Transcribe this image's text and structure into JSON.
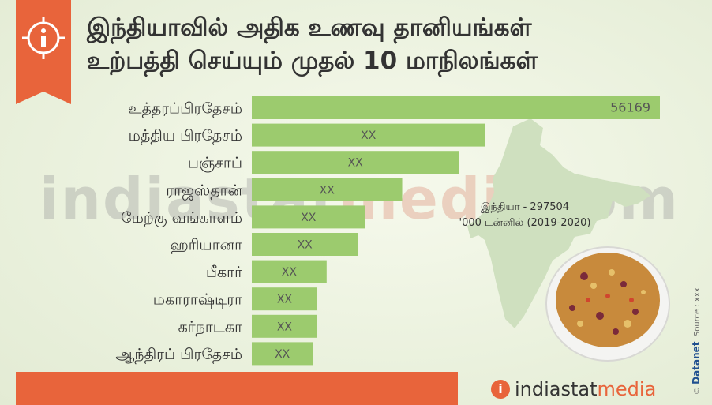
{
  "title": {
    "line1": "இந்தியாவில் அதிக உணவு தானியங்கள்",
    "line2": "உற்பத்தி செய்யும் முதல் 10 மாநிலங்கள்"
  },
  "india_note": {
    "line1": "இந்தியா - 297504",
    "line2": "'000 டன்னில் (2019-2020)"
  },
  "watermark": {
    "part1": "indiastat",
    "part2": "media",
    "part3": "com"
  },
  "logo": {
    "part1": "indiastat",
    "part2": "media",
    "icon": "info-icon"
  },
  "source": {
    "copyright": "©",
    "brand": "Datanet",
    "text": "Source : xxx"
  },
  "colors": {
    "accent": "#e8643b",
    "bar": "#9ccb6e",
    "text": "#333333"
  },
  "chart_data": {
    "type": "bar",
    "orientation": "horizontal",
    "categories": [
      "உத்தரப்பிரதேசம்",
      "மத்திய பிரதேசம்",
      "பஞ்சாப்",
      "ராஜஸ்தான்",
      "மேற்கு வங்காளம்",
      "ஹரியானா",
      "பீகார்",
      "மகாராஷ்டிரா",
      "கர்நாடகா",
      "ஆந்திரப் பிரதேசம்"
    ],
    "value_labels": [
      "56169",
      "XX",
      "XX",
      "XX",
      "XX",
      "XX",
      "XX",
      "XX",
      "XX",
      "XX"
    ],
    "values": [
      56169,
      32100,
      28500,
      20700,
      15600,
      14600,
      10300,
      9000,
      9000,
      8400
    ],
    "xlim": [
      0,
      56169
    ],
    "grid": false,
    "legend": "none"
  }
}
